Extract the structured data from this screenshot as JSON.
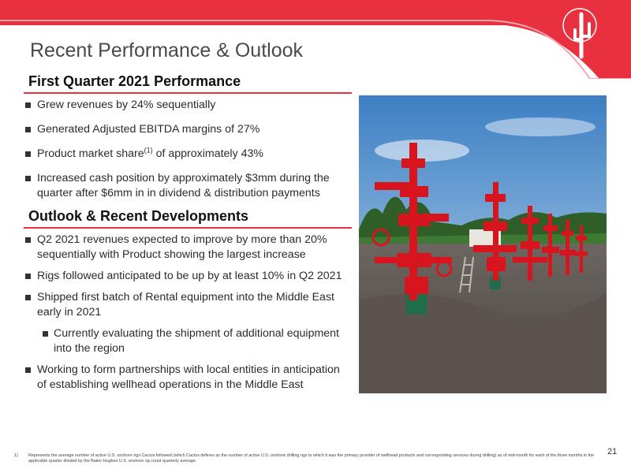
{
  "header": {
    "title": "Recent Performance & Outlook",
    "brand_color": "#e8303f"
  },
  "logo": {
    "name": "cactus-logo-icon"
  },
  "section1": {
    "heading": "First Quarter 2021 Performance",
    "bullets": [
      "Grew revenues by 24% sequentially",
      "Generated Adjusted EBITDA margins of 27%",
      "Increased cash position by approximately $3mm during the quarter after $6mm in in dividend & distribution payments"
    ],
    "share_bullet": {
      "before": "Product market share",
      "sup": "(1)",
      "after": " of approximately 43%"
    }
  },
  "section2": {
    "heading": "Outlook & Recent Developments",
    "bullets": [
      "Q2 2021 revenues expected to improve by more than 20% sequentially with Product showing the largest increase",
      "Rigs followed anticipated to be up by at least 10% in Q2 2021",
      "Shipped first batch of Rental equipment into the Middle East early in 2021",
      "Currently evaluating the shipment of additional equipment into the region",
      "Working to form partnerships with local entities in anticipation of establishing wellhead operations in the Middle East"
    ]
  },
  "photo": {
    "name": "wellhead-photo"
  },
  "footer": {
    "footnote_number": "1)",
    "footnote_text": "Represents the average number of active U.S. onshore rigs Cactus followed (which Cactus defines as the number of active U.S. onshore drilling rigs to which it was the primary provider of wellhead products and corresponding services during drilling) as of mid-month for each of the three months in the applicable quarter divided by the Baker Hughes U.S. onshore rig count quarterly average.",
    "page_number": "21"
  }
}
